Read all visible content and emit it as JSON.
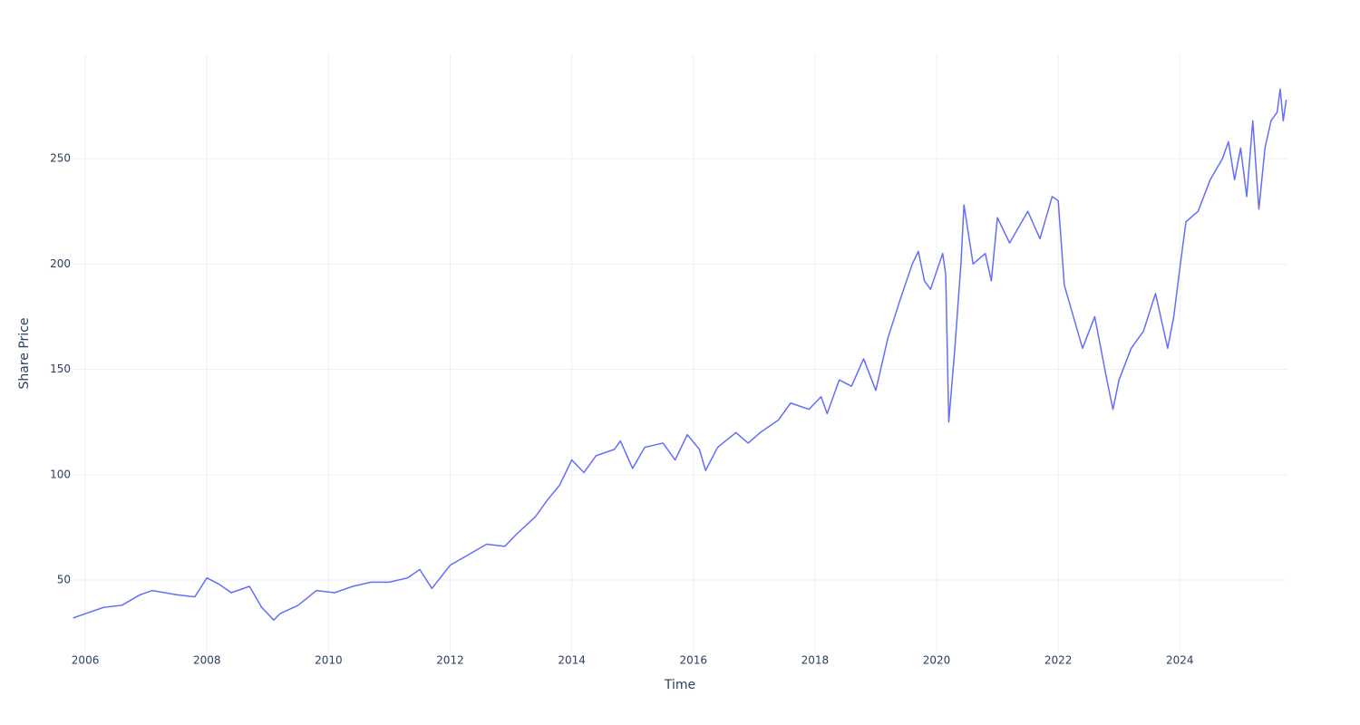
{
  "chart_data": {
    "type": "line",
    "xlabel": "Time",
    "ylabel": "Share Price",
    "x": [
      2005.8,
      2006.0,
      2006.3,
      2006.6,
      2006.9,
      2007.1,
      2007.5,
      2007.8,
      2008.0,
      2008.2,
      2008.4,
      2008.7,
      2008.9,
      2009.1,
      2009.2,
      2009.5,
      2009.8,
      2010.1,
      2010.4,
      2010.7,
      2011.0,
      2011.3,
      2011.5,
      2011.7,
      2012.0,
      2012.3,
      2012.6,
      2012.9,
      2013.1,
      2013.4,
      2013.6,
      2013.8,
      2014.0,
      2014.2,
      2014.4,
      2014.7,
      2014.8,
      2015.0,
      2015.2,
      2015.5,
      2015.7,
      2015.9,
      2016.1,
      2016.2,
      2016.4,
      2016.7,
      2016.9,
      2017.1,
      2017.4,
      2017.6,
      2017.9,
      2018.1,
      2018.2,
      2018.4,
      2018.6,
      2018.8,
      2019.0,
      2019.2,
      2019.4,
      2019.6,
      2019.7,
      2019.8,
      2019.9,
      2020.1,
      2020.15,
      2020.2,
      2020.3,
      2020.4,
      2020.45,
      2020.6,
      2020.8,
      2020.9,
      2021.0,
      2021.2,
      2021.5,
      2021.7,
      2021.9,
      2022.0,
      2022.1,
      2022.3,
      2022.4,
      2022.6,
      2022.8,
      2022.9,
      2023.0,
      2023.2,
      2023.4,
      2023.6,
      2023.8,
      2023.9,
      2024.0,
      2024.1,
      2024.3,
      2024.5,
      2024.7,
      2024.8,
      2024.9,
      2025.0,
      2025.1,
      2025.2,
      2025.3,
      2025.4,
      2025.5,
      2025.6,
      2025.65,
      2025.7,
      2025.75
    ],
    "series": [
      {
        "name": "Share Price",
        "color": "#636efa",
        "values": [
          32,
          34,
          37,
          38,
          43,
          45,
          43,
          42,
          51,
          48,
          44,
          47,
          37,
          31,
          34,
          38,
          45,
          44,
          47,
          49,
          49,
          51,
          55,
          46,
          57,
          62,
          67,
          66,
          72,
          80,
          88,
          95,
          107,
          101,
          109,
          112,
          116,
          103,
          113,
          115,
          107,
          119,
          112,
          102,
          113,
          120,
          115,
          120,
          126,
          134,
          131,
          137,
          129,
          145,
          142,
          155,
          140,
          165,
          183,
          200,
          206,
          192,
          188,
          205,
          195,
          125,
          160,
          200,
          228,
          200,
          205,
          192,
          222,
          210,
          225,
          212,
          232,
          230,
          190,
          170,
          160,
          175,
          145,
          131,
          145,
          160,
          168,
          186,
          160,
          175,
          198,
          220,
          225,
          240,
          250,
          258,
          240,
          255,
          232,
          268,
          226,
          255,
          268,
          272,
          283,
          268,
          278
        ]
      }
    ],
    "xlim": [
      2005.79,
      2025.77
    ],
    "xticks": [
      2006,
      2008,
      2010,
      2012,
      2014,
      2016,
      2018,
      2020,
      2022,
      2024
    ],
    "ylim": [
      15.6,
      299.5
    ],
    "yticks": [
      50,
      100,
      150,
      200,
      250
    ],
    "grid": true
  }
}
